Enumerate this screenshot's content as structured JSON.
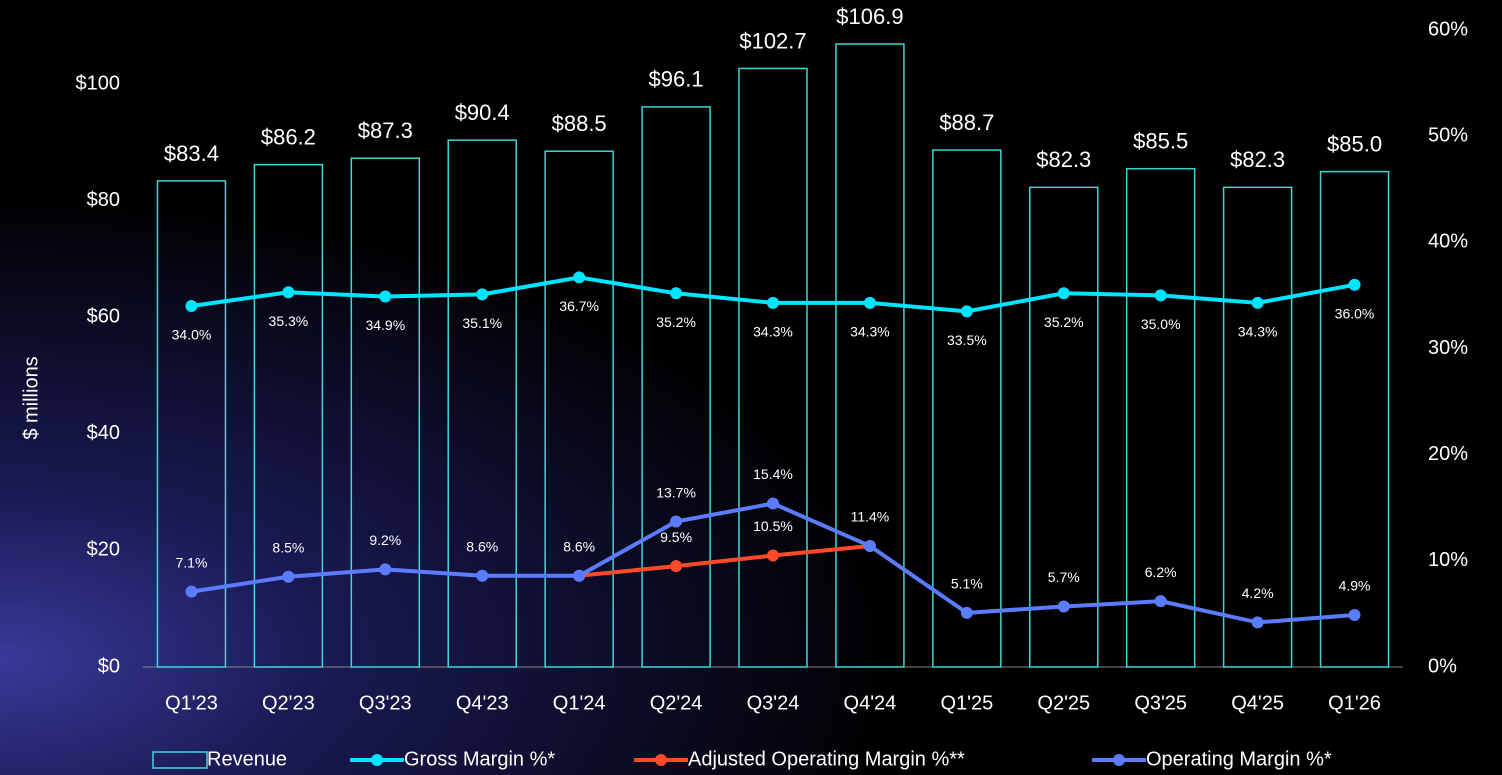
{
  "chart_data": {
    "type": "bar_line",
    "y_axis_label": "$ millions",
    "categories": [
      "Q1'23",
      "Q2'23",
      "Q3'23",
      "Q4'23",
      "Q1'24",
      "Q2'24",
      "Q3'24",
      "Q4'24",
      "Q1'25",
      "Q2'25",
      "Q3'25",
      "Q4'25",
      "Q1'26"
    ],
    "ylim": [
      0,
      109.3
    ],
    "yticks": [
      {
        "value": 0,
        "label": "$0"
      },
      {
        "value": 20,
        "label": "$20"
      },
      {
        "value": 40,
        "label": "$40"
      },
      {
        "value": 60,
        "label": "$60"
      },
      {
        "value": 80,
        "label": "$80"
      },
      {
        "value": 100,
        "label": "$100"
      }
    ],
    "y2lim": [
      0,
      60
    ],
    "y2ticks": [
      {
        "value": 0,
        "label": "0%"
      },
      {
        "value": 10,
        "label": "10%"
      },
      {
        "value": 20,
        "label": "20%"
      },
      {
        "value": 30,
        "label": "30%"
      },
      {
        "value": 40,
        "label": "40%"
      },
      {
        "value": 50,
        "label": "50%"
      },
      {
        "value": 60,
        "label": "60%"
      }
    ],
    "series": [
      {
        "name": "Revenue",
        "type": "bar",
        "color": "#3fd6d6",
        "values": [
          83.4,
          86.2,
          87.3,
          90.4,
          88.5,
          96.1,
          102.7,
          106.9,
          88.7,
          82.3,
          85.5,
          82.3,
          85.0
        ],
        "value_labels": [
          "$83.4",
          "$86.2",
          "$87.3",
          "$90.4",
          "$88.5",
          "$96.1",
          "$102.7",
          "$106.9",
          "$88.7",
          "$82.3",
          "$85.5",
          "$82.3",
          "$85.0"
        ]
      },
      {
        "name": "Gross Margin %*",
        "type": "line",
        "axis": "y2",
        "color": "#00e5ff",
        "values": [
          34.0,
          35.3,
          34.9,
          35.1,
          36.7,
          35.2,
          34.3,
          34.3,
          33.5,
          35.2,
          35.0,
          34.3,
          36.0
        ],
        "value_labels": [
          "34.0%",
          "35.3%",
          "34.9%",
          "35.1%",
          "36.7%",
          "35.2%",
          "34.3%",
          "34.3%",
          "33.5%",
          "35.2%",
          "35.0%",
          "34.3%",
          "36.0%"
        ]
      },
      {
        "name": "Adjusted Operating Margin %**",
        "type": "line",
        "axis": "y2",
        "color": "#ff4a2a",
        "values": [
          null,
          null,
          null,
          null,
          8.6,
          9.5,
          10.5,
          11.4,
          null,
          null,
          null,
          null,
          null
        ],
        "value_labels": [
          null,
          null,
          null,
          null,
          "8.6%",
          "9.5%",
          "10.5%",
          "11.4%",
          null,
          null,
          null,
          null,
          null
        ]
      },
      {
        "name": "Operating Margin %*",
        "type": "line",
        "axis": "y2",
        "color": "#5b7cff",
        "values": [
          7.1,
          8.5,
          9.2,
          8.6,
          8.6,
          13.7,
          15.4,
          11.4,
          5.1,
          5.7,
          6.2,
          4.2,
          4.9
        ],
        "value_labels": [
          "7.1%",
          "8.5%",
          "9.2%",
          "8.6%",
          "8.6%",
          "13.7%",
          "15.4%",
          "11.4%",
          "5.1%",
          "5.7%",
          "6.2%",
          "4.2%",
          "4.9%"
        ]
      }
    ]
  }
}
